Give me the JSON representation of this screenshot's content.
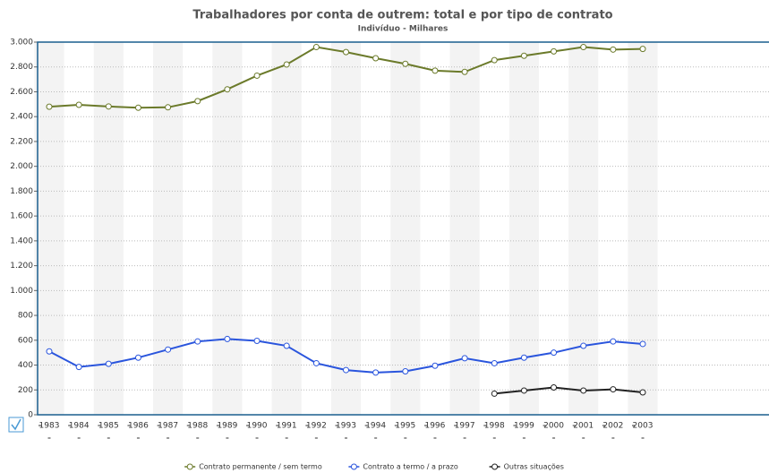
{
  "chart_data": {
    "type": "line",
    "title": "Trabalhadores por conta de outrem: total e por tipo de contrato",
    "subtitle": "Indivíduo - Milhares",
    "categories": [
      "1983",
      "1984",
      "1985",
      "1986",
      "1987",
      "1988",
      "1989",
      "1990",
      "1991",
      "1992",
      "1993",
      "1994",
      "1995",
      "1996",
      "1997",
      "1998",
      "1999",
      "2000",
      "2001",
      "2002",
      "2003"
    ],
    "series": [
      {
        "name": "Contrato permanente / sem termo",
        "color": "#6b7a2a",
        "values": [
          2480,
          2495,
          2482,
          2472,
          2475,
          2525,
          2620,
          2730,
          2820,
          2960,
          2920,
          2870,
          2825,
          2770,
          2760,
          2855,
          2890,
          2925,
          2960,
          2940,
          2945
        ]
      },
      {
        "name": "Contrato a termo / a prazo",
        "color": "#2a55dd",
        "values": [
          510,
          385,
          410,
          460,
          525,
          590,
          610,
          595,
          555,
          415,
          360,
          340,
          350,
          395,
          455,
          415,
          460,
          500,
          555,
          590,
          570
        ]
      },
      {
        "name": "Outras situações",
        "color": "#222222",
        "values": [
          null,
          null,
          null,
          null,
          null,
          null,
          null,
          null,
          null,
          null,
          null,
          null,
          null,
          null,
          null,
          170,
          195,
          220,
          195,
          205,
          180
        ]
      }
    ],
    "ylim": [
      0,
      3000
    ],
    "yticks": [
      0,
      200,
      400,
      600,
      800,
      {
        "value": 1000,
        "label": "1.000"
      },
      {
        "value": 1200,
        "label": "1.200"
      },
      {
        "value": 1400,
        "label": "1.400"
      },
      {
        "value": 1600,
        "label": "1.600"
      },
      {
        "value": 1800,
        "label": "1.800"
      },
      {
        "value": 2000,
        "label": "2.000"
      },
      {
        "value": 2200,
        "label": "2.200"
      },
      {
        "value": 2400,
        "label": "2.400"
      },
      {
        "value": 2600,
        "label": "2.600"
      },
      {
        "value": 2800,
        "label": "2.800"
      },
      {
        "value": 3000,
        "label": "3.000"
      }
    ],
    "grid": true
  }
}
